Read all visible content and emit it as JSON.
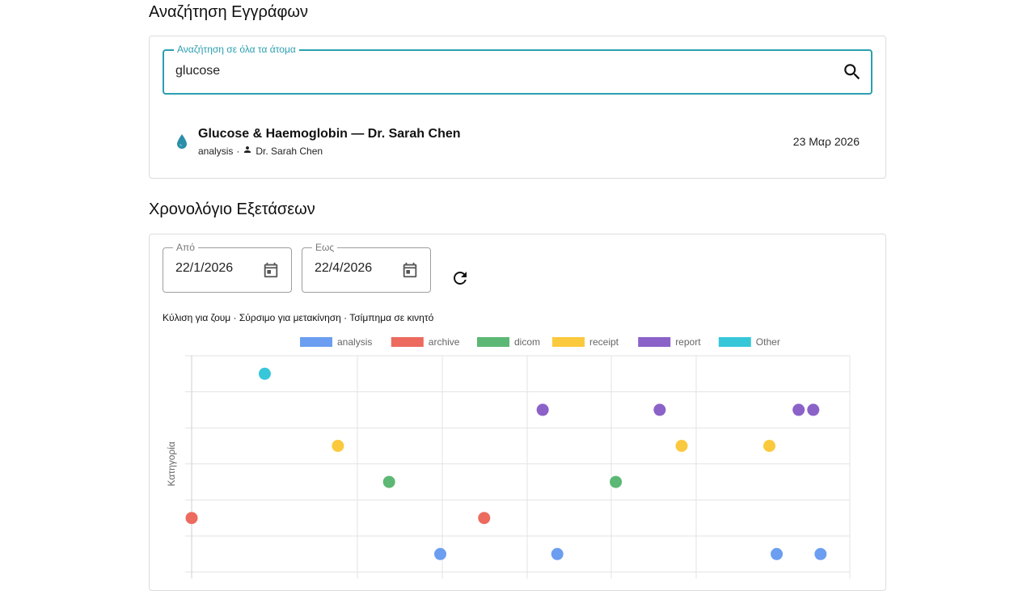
{
  "search_section": {
    "title": "Αναζήτηση Εγγράφων",
    "search": {
      "label": "Αναζήτηση σε όλα τα άτομα",
      "value": "glucose",
      "icon": "search-icon"
    },
    "results": [
      {
        "title": "Glucose & Haemoglobin — Dr. Sarah Chen",
        "type": "analysis",
        "separator": "·",
        "person": "Dr. Sarah Chen",
        "date": "23 Μαρ 2026",
        "icon": "water-drop-icon",
        "icon_color": "#2a8fa8"
      }
    ]
  },
  "timeline_section": {
    "title": "Χρονολόγιο Εξετάσεων",
    "from": {
      "label": "Από",
      "value": "22/1/2026"
    },
    "to": {
      "label": "Εως",
      "value": "22/4/2026"
    },
    "hint": "Κύλιση για ζουμ · Σύρσιμο για μετακίνηση · Τσίμπημα σε κινητό"
  },
  "chart_data": {
    "type": "scatter",
    "ylabel": "Κατηγορία",
    "x_range": [
      "2026-01-22",
      "2026-04-22"
    ],
    "grid": true,
    "legend_position": "top",
    "categories_bottom_to_top": [
      "analysis",
      "archive",
      "dicom",
      "receipt",
      "report",
      "Other"
    ],
    "series": [
      {
        "name": "analysis",
        "color": "#6b9ef0",
        "dates": [
          "2026-02-25",
          "2026-03-13",
          "2026-04-12",
          "2026-04-18"
        ]
      },
      {
        "name": "archive",
        "color": "#ec6a5e",
        "dates": [
          "2026-01-22",
          "2026-03-03"
        ]
      },
      {
        "name": "dicom",
        "color": "#5cb874",
        "dates": [
          "2026-02-18",
          "2026-03-21"
        ]
      },
      {
        "name": "receipt",
        "color": "#fbc93d",
        "dates": [
          "2026-02-11",
          "2026-03-30",
          "2026-04-11"
        ]
      },
      {
        "name": "report",
        "color": "#8b62c8",
        "dates": [
          "2026-03-11",
          "2026-03-27",
          "2026-04-15",
          "2026-04-17"
        ]
      },
      {
        "name": "Other",
        "color": "#37c7d9",
        "dates": [
          "2026-02-01"
        ]
      }
    ]
  }
}
